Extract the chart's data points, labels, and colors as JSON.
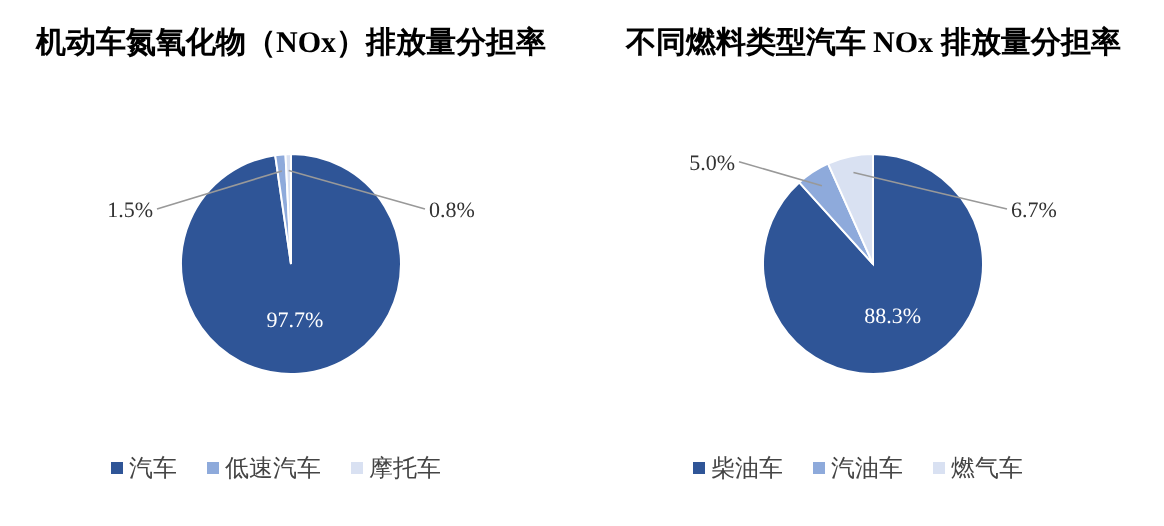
{
  "chart_data": [
    {
      "type": "pie",
      "title": "机动车氮氧化物（NOx）排放量分担率",
      "categories": [
        "汽车",
        "低速汽车",
        "摩托车"
      ],
      "values": [
        97.7,
        1.5,
        0.8
      ],
      "value_labels": [
        "97.7%",
        "1.5%",
        "0.8%"
      ],
      "colors": [
        "#2f5597",
        "#8eaadb",
        "#d9e1f2"
      ],
      "legend": "bottom"
    },
    {
      "type": "pie",
      "title": "不同燃料类型汽车 NOx 排放量分担率",
      "categories": [
        "柴油车",
        "汽油车",
        "燃气车"
      ],
      "values": [
        88.3,
        5.0,
        6.7
      ],
      "value_labels": [
        "88.3%",
        "5.0%",
        "6.7%"
      ],
      "colors": [
        "#2f5597",
        "#8eaadb",
        "#d9e1f2"
      ],
      "legend": "bottom"
    }
  ]
}
